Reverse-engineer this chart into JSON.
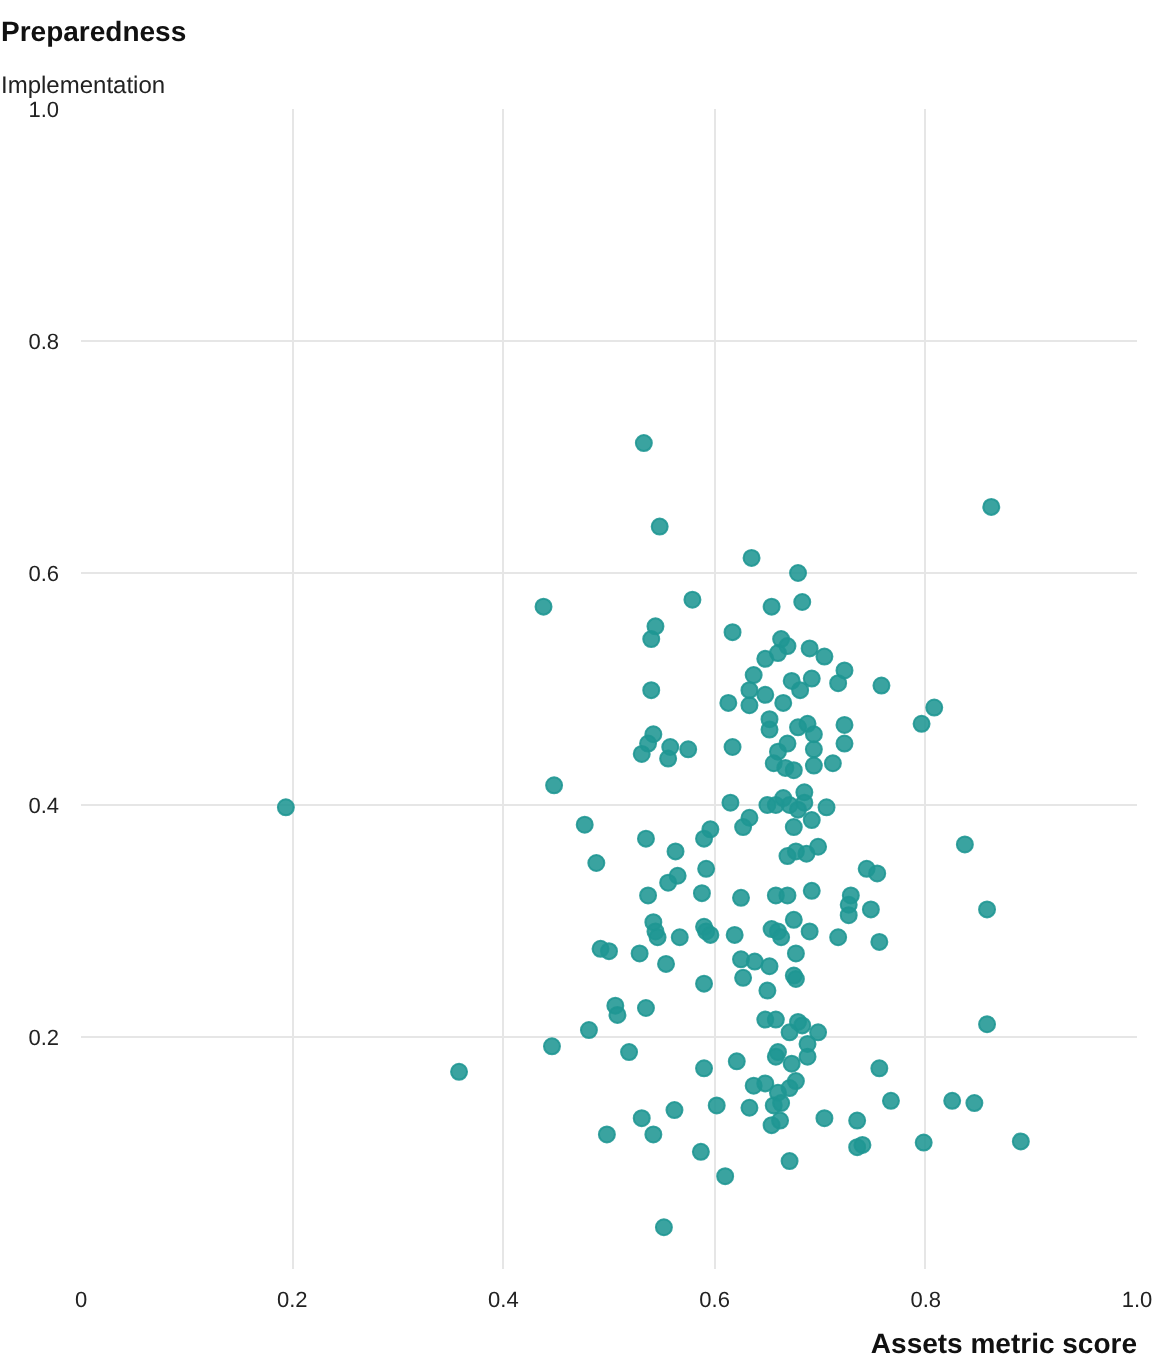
{
  "chart_data": {
    "type": "scatter",
    "title": "Preparedness",
    "subtitle": "Implementation",
    "xlabel": "Assets metric score",
    "xlim": [
      0,
      1
    ],
    "ylim": [
      0,
      1
    ],
    "xticks": [
      0,
      0.2,
      0.4,
      0.6,
      0.8,
      {
        "value": 1,
        "label": "1.0"
      }
    ],
    "yticks": [
      0.2,
      0.4,
      0.6,
      0.8,
      {
        "value": 1,
        "label": "1.0"
      }
    ],
    "grid": true,
    "marker": "circle",
    "series": [
      {
        "color": "#1f9693",
        "x": [
          0.194,
          0.358,
          0.438,
          0.448,
          0.446,
          0.533,
          0.548,
          0.579,
          0.862,
          0.552,
          0.61,
          0.635,
          0.679,
          0.654,
          0.683,
          0.544,
          0.54,
          0.617,
          0.663,
          0.669,
          0.66,
          0.69,
          0.704,
          0.648,
          0.637,
          0.723,
          0.633,
          0.673,
          0.692,
          0.681,
          0.717,
          0.758,
          0.54,
          0.648,
          0.613,
          0.633,
          0.665,
          0.652,
          0.679,
          0.688,
          0.652,
          0.694,
          0.723,
          0.542,
          0.537,
          0.531,
          0.558,
          0.556,
          0.575,
          0.617,
          0.669,
          0.694,
          0.66,
          0.723,
          0.656,
          0.667,
          0.675,
          0.694,
          0.712,
          0.477,
          0.535,
          0.615,
          0.65,
          0.658,
          0.665,
          0.671,
          0.685,
          0.685,
          0.679,
          0.692,
          0.706,
          0.633,
          0.627,
          0.675,
          0.596,
          0.59,
          0.796,
          0.808,
          0.837,
          0.488,
          0.563,
          0.669,
          0.677,
          0.687,
          0.698,
          0.565,
          0.556,
          0.592,
          0.744,
          0.754,
          0.537,
          0.588,
          0.625,
          0.658,
          0.669,
          0.692,
          0.729,
          0.727,
          0.727,
          0.748,
          0.542,
          0.544,
          0.546,
          0.567,
          0.59,
          0.592,
          0.596,
          0.619,
          0.654,
          0.66,
          0.663,
          0.675,
          0.69,
          0.717,
          0.756,
          0.492,
          0.5,
          0.529,
          0.554,
          0.625,
          0.638,
          0.652,
          0.677,
          0.627,
          0.675,
          0.677,
          0.59,
          0.65,
          0.506,
          0.508,
          0.535,
          0.481,
          0.648,
          0.658,
          0.671,
          0.679,
          0.683,
          0.698,
          0.688,
          0.688,
          0.519,
          0.621,
          0.66,
          0.658,
          0.673,
          0.59,
          0.756,
          0.637,
          0.648,
          0.66,
          0.671,
          0.677,
          0.602,
          0.562,
          0.633,
          0.656,
          0.663,
          0.531,
          0.542,
          0.498,
          0.654,
          0.662,
          0.704,
          0.735,
          0.587,
          0.671,
          0.735,
          0.74,
          0.858,
          0.858,
          0.767,
          0.798,
          0.825,
          0.846,
          0.89
        ],
        "values": [
          0.398,
          0.17,
          0.571,
          0.417,
          0.192,
          0.712,
          0.64,
          0.577,
          0.657,
          0.036,
          0.08,
          0.613,
          0.6,
          0.571,
          0.575,
          0.554,
          0.543,
          0.549,
          0.543,
          0.537,
          0.531,
          0.535,
          0.528,
          0.526,
          0.512,
          0.516,
          0.499,
          0.507,
          0.509,
          0.499,
          0.505,
          0.503,
          0.499,
          0.495,
          0.488,
          0.486,
          0.488,
          0.474,
          0.467,
          0.47,
          0.465,
          0.461,
          0.469,
          0.461,
          0.453,
          0.444,
          0.45,
          0.44,
          0.448,
          0.45,
          0.453,
          0.448,
          0.446,
          0.453,
          0.436,
          0.432,
          0.43,
          0.434,
          0.436,
          0.383,
          0.371,
          0.402,
          0.4,
          0.4,
          0.406,
          0.4,
          0.411,
          0.402,
          0.396,
          0.387,
          0.398,
          0.389,
          0.381,
          0.381,
          0.379,
          0.371,
          0.47,
          0.484,
          0.366,
          0.35,
          0.36,
          0.356,
          0.36,
          0.358,
          0.364,
          0.339,
          0.333,
          0.345,
          0.345,
          0.341,
          0.322,
          0.324,
          0.32,
          0.322,
          0.322,
          0.326,
          0.322,
          0.314,
          0.305,
          0.31,
          0.299,
          0.291,
          0.286,
          0.286,
          0.295,
          0.291,
          0.288,
          0.288,
          0.293,
          0.291,
          0.286,
          0.301,
          0.291,
          0.286,
          0.282,
          0.276,
          0.274,
          0.272,
          0.263,
          0.267,
          0.265,
          0.261,
          0.272,
          0.251,
          0.253,
          0.25,
          0.246,
          0.24,
          0.227,
          0.219,
          0.225,
          0.206,
          0.215,
          0.215,
          0.204,
          0.213,
          0.21,
          0.204,
          0.194,
          0.183,
          0.187,
          0.179,
          0.187,
          0.183,
          0.177,
          0.173,
          0.173,
          0.158,
          0.16,
          0.152,
          0.156,
          0.162,
          0.141,
          0.137,
          0.139,
          0.141,
          0.143,
          0.13,
          0.116,
          0.116,
          0.124,
          0.128,
          0.13,
          0.128,
          0.101,
          0.093,
          0.105,
          0.107,
          0.31,
          0.211,
          0.145,
          0.109,
          0.145,
          0.143,
          0.11
        ]
      }
    ]
  }
}
